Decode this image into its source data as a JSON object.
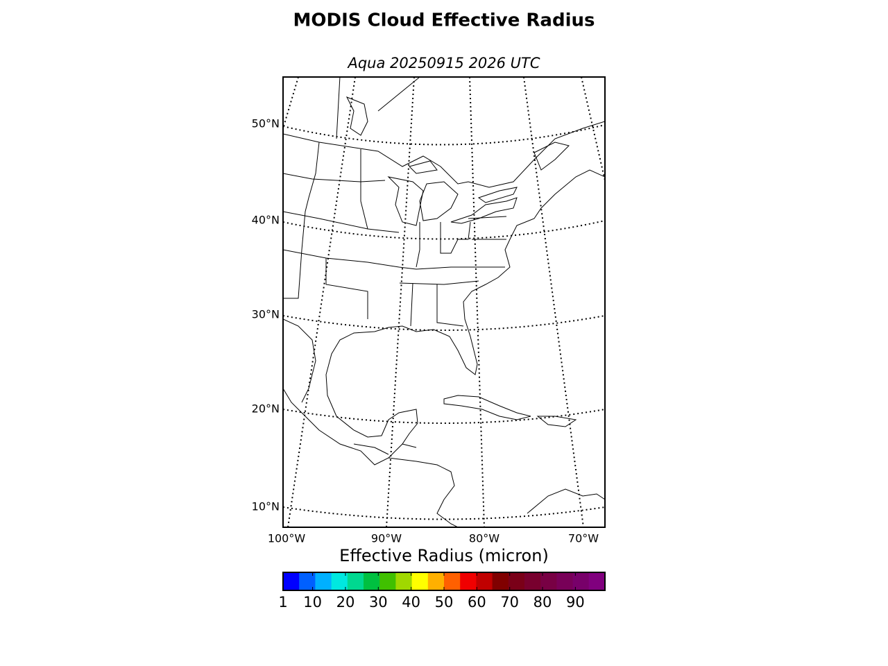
{
  "title": "MODIS Cloud Effective Radius",
  "subtitle": "Aqua 20250915 2026 UTC",
  "map": {
    "lat_labels": [
      "50°N",
      "40°N",
      "30°N",
      "20°N",
      "10°N"
    ],
    "lon_labels": [
      "100°W",
      "90°W",
      "80°W",
      "70°W"
    ]
  },
  "colorbar": {
    "label": "Effective Radius (micron)",
    "range": [
      1,
      99
    ],
    "ticks": [
      1,
      10,
      20,
      30,
      40,
      50,
      60,
      70,
      80,
      90
    ],
    "colors": [
      "#0000ff",
      "#0060ff",
      "#00b0ff",
      "#00e8e0",
      "#00d890",
      "#00c040",
      "#40c000",
      "#a0d800",
      "#ffff00",
      "#ffb000",
      "#ff6000",
      "#f00000",
      "#c00000",
      "#800000",
      "#7a0018",
      "#78002e",
      "#780044",
      "#780058",
      "#78006a",
      "#80007e"
    ]
  }
}
